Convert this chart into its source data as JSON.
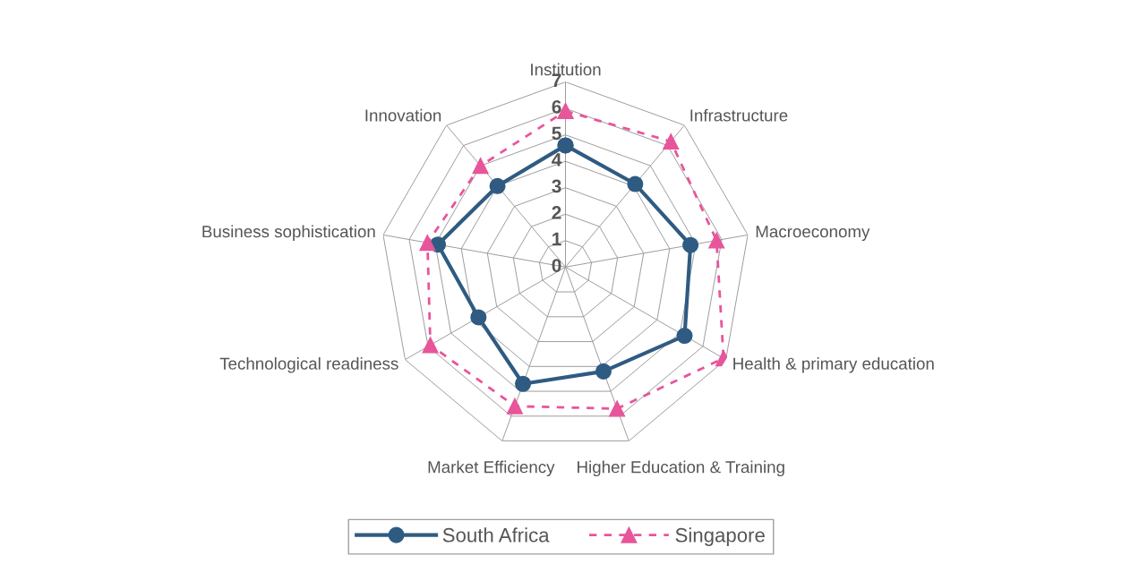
{
  "chart_data": {
    "type": "radar",
    "categories": [
      "Institution",
      "Infrastructure",
      "Macroeconomy",
      "Health & primary education",
      "Higher Education & Training",
      "Market Efficiency",
      "Technological readiness",
      "Business sophistication",
      "Innovation"
    ],
    "series": [
      {
        "name": "South Africa",
        "color": "#2f5b82",
        "marker": "circle",
        "line_style": "solid",
        "values": [
          4.6,
          4.1,
          4.8,
          5.2,
          4.2,
          4.7,
          3.8,
          4.9,
          4.0
        ]
      },
      {
        "name": "Singapore",
        "color": "#e8559a",
        "marker": "triangle",
        "line_style": "dashed",
        "values": [
          5.9,
          6.2,
          5.8,
          6.9,
          5.7,
          5.6,
          5.9,
          5.3,
          5.0
        ]
      }
    ],
    "ylim": [
      0,
      7
    ],
    "yticks": [
      0,
      1,
      2,
      3,
      4,
      5,
      6,
      7
    ],
    "grid": true,
    "legend": "bottom"
  }
}
